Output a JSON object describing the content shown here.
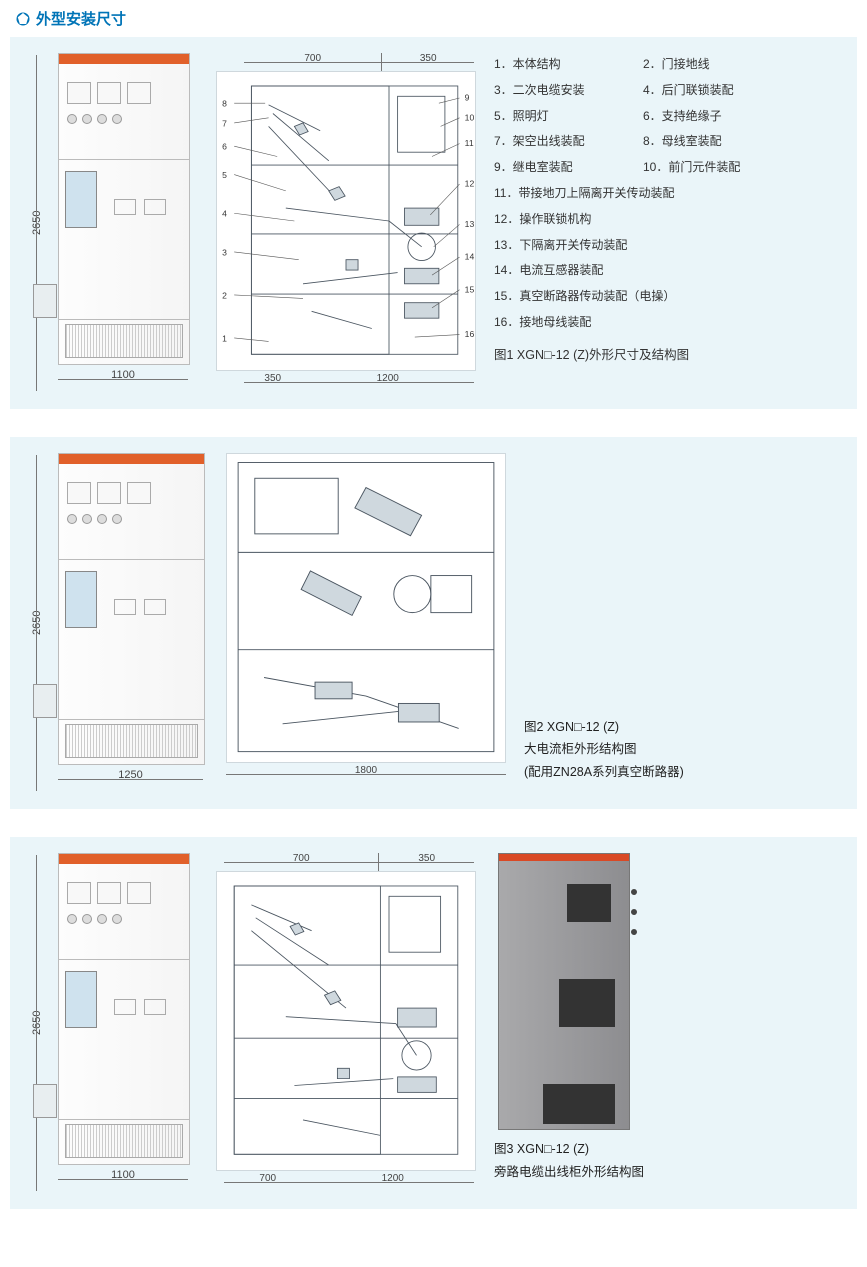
{
  "page": {
    "title": "外型安装尺寸",
    "title_color": "#0074b7",
    "panel_bg": "#eaf5f9",
    "body_bg": "#ffffff",
    "text_color": "#333333",
    "accent_color": "#e1602a",
    "line_color": "#4a5560"
  },
  "figure1": {
    "height_dim": "2650",
    "width_dim": "1100",
    "top_dims": {
      "a": "700",
      "b": "350"
    },
    "bottom_dims": {
      "a": "350",
      "b": "1200"
    },
    "left_callouts": [
      "8",
      "7",
      "6",
      "5",
      "4",
      "3",
      "2",
      "1"
    ],
    "right_callouts": [
      "9",
      "10",
      "11",
      "12",
      "13",
      "14",
      "15",
      "16"
    ],
    "legend": [
      {
        "n": "1",
        "t": "本体结构"
      },
      {
        "n": "2",
        "t": "门接地线"
      },
      {
        "n": "3",
        "t": "二次电缆安装"
      },
      {
        "n": "4",
        "t": "后门联锁装配"
      },
      {
        "n": "5",
        "t": "照明灯"
      },
      {
        "n": "6",
        "t": "支持绝缘子"
      },
      {
        "n": "7",
        "t": "架空出线装配"
      },
      {
        "n": "8",
        "t": "母线室装配"
      },
      {
        "n": "9",
        "t": "继电室装配"
      },
      {
        "n": "10",
        "t": "前门元件装配"
      },
      {
        "n": "11",
        "t": "带接地刀上隔离开关传动装配"
      },
      {
        "n": "12",
        "t": "操作联锁机构"
      },
      {
        "n": "13",
        "t": "下隔离开关传动装配"
      },
      {
        "n": "14",
        "t": "电流互感器装配"
      },
      {
        "n": "15",
        "t": "真空断路器传动装配（电操）"
      },
      {
        "n": "16",
        "t": "接地母线装配"
      }
    ],
    "caption": "图1 XGN□-12 (Z)外形尺寸及结构图"
  },
  "figure2": {
    "height_dim": "2650",
    "width_dim": "1250",
    "bottom_dim": "1800",
    "caption_l1": "图2 XGN□-12 (Z)",
    "caption_l2": "大电流柜外形结构图",
    "caption_l3": "(配用ZN28A系列真空断路器)"
  },
  "figure3": {
    "height_dim": "2650",
    "width_dim": "1100",
    "top_dims": {
      "a": "700",
      "b": "350"
    },
    "bottom_dims": {
      "a": "700",
      "b": "1200"
    },
    "caption_l1": "图3 XGN□-12 (Z)",
    "caption_l2": "旁路电缆出线柜外形结构图"
  }
}
